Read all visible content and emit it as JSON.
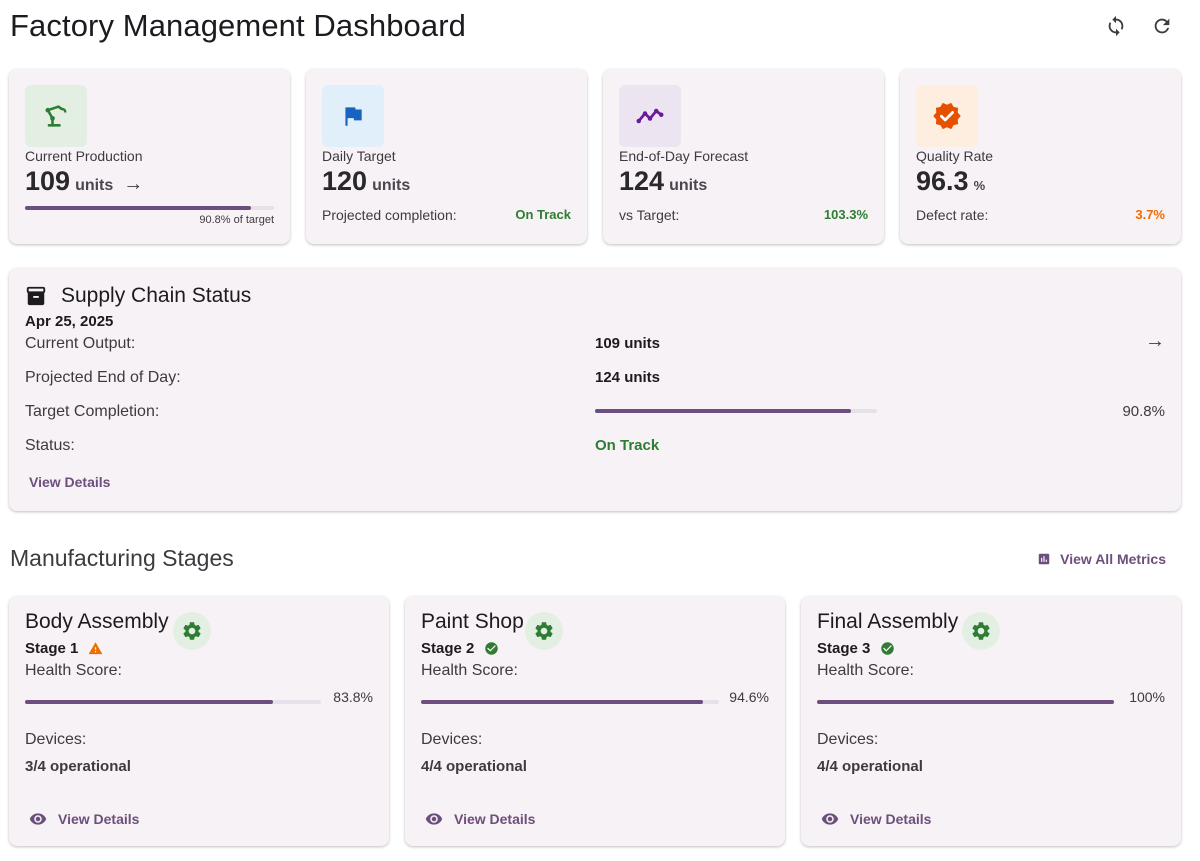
{
  "header": {
    "title": "Factory Management Dashboard",
    "icons": [
      "sync-icon",
      "refresh-icon"
    ]
  },
  "kpis": [
    {
      "label": "Current Production",
      "value": "109",
      "unit": "units",
      "arrow": "→",
      "progress_note": "90.8% of target",
      "progress_fraction": 0.908,
      "icon": "robot-arm-icon",
      "icon_color": "#2e7d32",
      "icon_bg": "#e3efe3"
    },
    {
      "label": "Daily Target",
      "value": "120",
      "unit": "units",
      "sub_label": "Projected completion:",
      "sub_value": "On Track",
      "sub_color": "#2e7d32",
      "icon": "flag-icon",
      "icon_color": "#1565c0",
      "icon_bg": "#e1effb"
    },
    {
      "label": "End-of-Day Forecast",
      "value": "124",
      "unit": "units",
      "sub_label": "vs Target:",
      "sub_value": "103.3%",
      "sub_color": "#2e7d32",
      "icon": "trending-line-icon",
      "icon_color": "#6a1b9a",
      "icon_bg": "#ede4f1"
    },
    {
      "label": "Quality Rate",
      "value": "96.3",
      "unit": "%",
      "sub_label": "Defect rate:",
      "sub_value": "3.7%",
      "sub_color": "#ef6c00",
      "icon": "verified-badge-icon",
      "icon_color": "#e65100",
      "icon_bg": "#fdeee0"
    }
  ],
  "supply": {
    "title": "Supply Chain Status",
    "date": "Apr 25, 2025",
    "rows": [
      {
        "label": "Current Output:",
        "value": "109 units"
      },
      {
        "label": "Projected End of Day:",
        "value": "124 units"
      },
      {
        "label": "Target Completion:",
        "value": "90.8%"
      },
      {
        "label": "Status:",
        "value": "On Track"
      }
    ],
    "target_fraction": 0.908,
    "arrow": "→",
    "view_details": "View Details",
    "status_color": "#2e7d32"
  },
  "stages_section": {
    "title": "Manufacturing Stages",
    "view_all": "View All Metrics"
  },
  "stages": [
    {
      "name": "Body Assembly",
      "stage": "Stage 1",
      "status_icon": "warning-icon",
      "health_label": "Health Score:",
      "health_pct": "83.8%",
      "health_fraction": 0.838,
      "devices_label": "Devices:",
      "devices_value": "3/4 operational",
      "view_details": "View Details"
    },
    {
      "name": "Paint Shop",
      "stage": "Stage 2",
      "status_icon": "check-circle-icon",
      "health_label": "Health Score:",
      "health_pct": "94.6%",
      "health_fraction": 0.946,
      "devices_label": "Devices:",
      "devices_value": "4/4 operational",
      "view_details": "View Details"
    },
    {
      "name": "Final Assembly",
      "stage": "Stage 3",
      "status_icon": "check-circle-icon",
      "health_label": "Health Score:",
      "health_pct": "100%",
      "health_fraction": 1.0,
      "devices_label": "Devices:",
      "devices_value": "4/4 operational",
      "view_details": "View Details"
    }
  ],
  "colors": {
    "accent": "#6c4f7c",
    "card_bg": "#f7f2f5",
    "success": "#2e7d32",
    "warning": "#ef6c00"
  }
}
